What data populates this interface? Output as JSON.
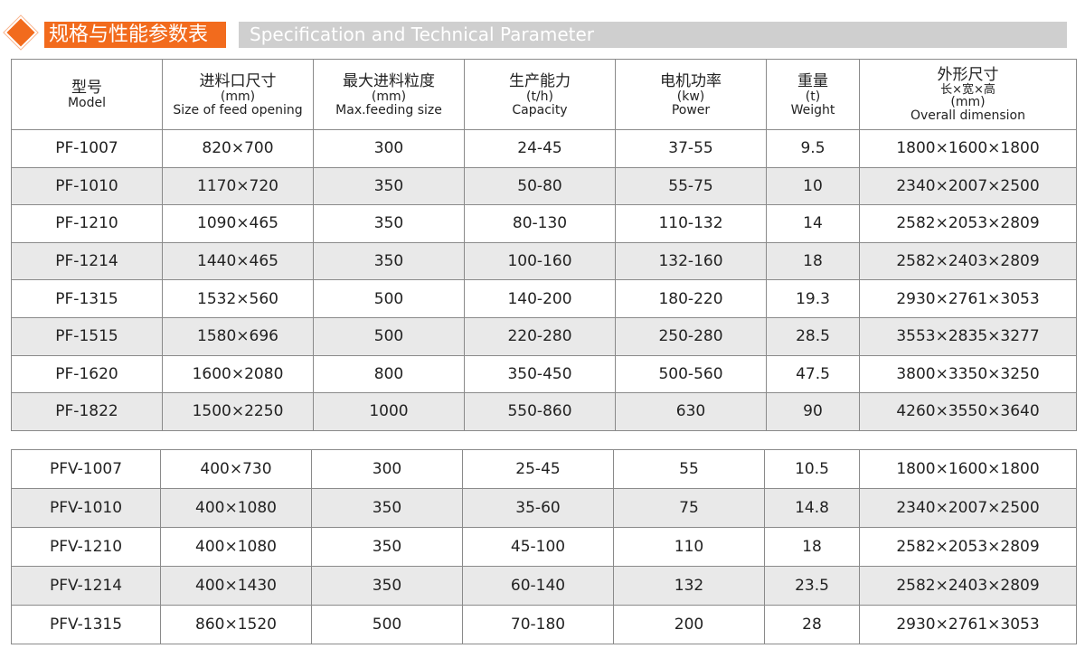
{
  "header": {
    "title_cn": "规格与性能参数表",
    "title_en": "Specification and Technical Parameter",
    "accent_color": "#f26b1d",
    "icon": "diamond-icon"
  },
  "columns": [
    {
      "cn": "型号",
      "unit": "",
      "en": "Model"
    },
    {
      "cn": "进料口尺寸",
      "unit": "(mm)",
      "en": "Size of feed opening"
    },
    {
      "cn": "最大进料粒度",
      "unit": "(mm)",
      "en": "Max.feeding size"
    },
    {
      "cn": "生产能力",
      "unit": "(t/h)",
      "en": "Capacity"
    },
    {
      "cn": "电机功率",
      "unit": "(kw)",
      "en": "Power"
    },
    {
      "cn": "重量",
      "unit": "(t)",
      "en": "Weight"
    },
    {
      "cn": "外形尺寸",
      "sub": "长×宽×高",
      "unit": "(mm)",
      "en": "Overall dimension"
    }
  ],
  "pf_rows": [
    [
      "PF-1007",
      "820×700",
      "300",
      "24-45",
      "37-55",
      "9.5",
      "1800×1600×1800"
    ],
    [
      "PF-1010",
      "1170×720",
      "350",
      "50-80",
      "55-75",
      "10",
      "2340×2007×2500"
    ],
    [
      "PF-1210",
      "1090×465",
      "350",
      "80-130",
      "110-132",
      "14",
      "2582×2053×2809"
    ],
    [
      "PF-1214",
      "1440×465",
      "350",
      "100-160",
      "132-160",
      "18",
      "2582×2403×2809"
    ],
    [
      "PF-1315",
      "1532×560",
      "500",
      "140-200",
      "180-220",
      "19.3",
      "2930×2761×3053"
    ],
    [
      "PF-1515",
      "1580×696",
      "500",
      "220-280",
      "250-280",
      "28.5",
      "3553×2835×3277"
    ],
    [
      "PF-1620",
      "1600×2080",
      "800",
      "350-450",
      "500-560",
      "47.5",
      "3800×3350×3250"
    ],
    [
      "PF-1822",
      "1500×2250",
      "1000",
      "550-860",
      "630",
      "90",
      "4260×3550×3640"
    ]
  ],
  "pfv_rows": [
    [
      "PFV-1007",
      "400×730",
      "300",
      "25-45",
      "55",
      "10.5",
      "1800×1600×1800"
    ],
    [
      "PFV-1010",
      "400×1080",
      "350",
      "35-60",
      "75",
      "14.8",
      "2340×2007×2500"
    ],
    [
      "PFV-1210",
      "400×1080",
      "350",
      "45-100",
      "110",
      "18",
      "2582×2053×2809"
    ],
    [
      "PFV-1214",
      "400×1430",
      "350",
      "60-140",
      "132",
      "23.5",
      "2582×2403×2809"
    ],
    [
      "PFV-1315",
      "860×1520",
      "500",
      "70-180",
      "200",
      "28",
      "2930×2761×3053"
    ]
  ]
}
